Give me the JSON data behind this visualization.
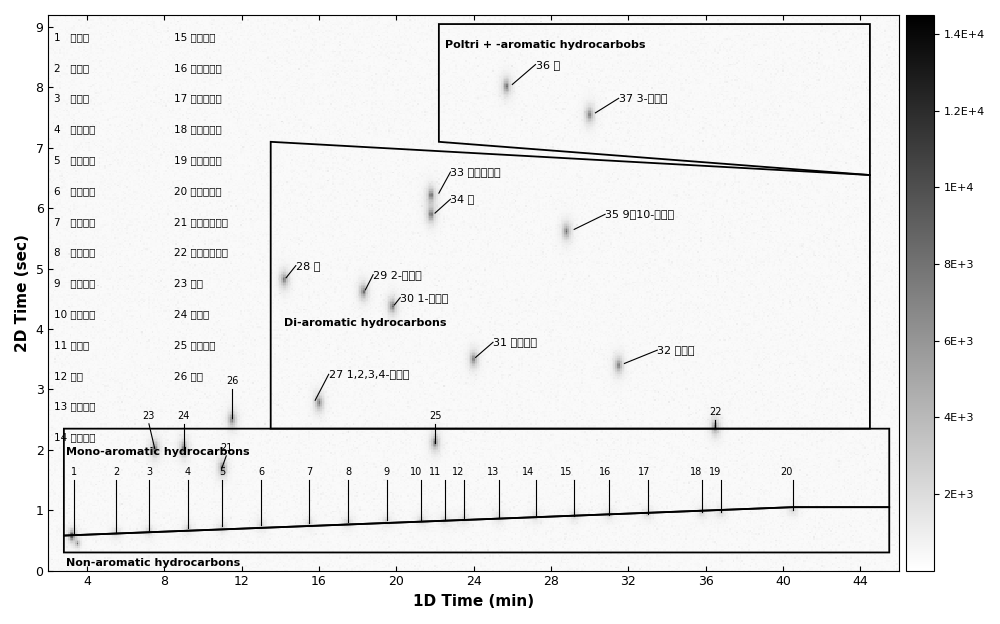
{
  "xlabel": "1D Time (min)",
  "ylabel": "2D Time (sec)",
  "xlim": [
    2,
    46
  ],
  "ylim": [
    0,
    9.2
  ],
  "xticks": [
    4,
    8,
    12,
    16,
    20,
    24,
    28,
    32,
    36,
    40,
    44
  ],
  "yticks": [
    0,
    1,
    2,
    3,
    4,
    5,
    6,
    7,
    8,
    9
  ],
  "legend_col1": [
    "1   正辛烷",
    "2   正壬烷",
    "3   正十烷",
    "4   正十一烷",
    "5   正十二烷",
    "6   正十三烷",
    "7   正十四烷",
    "8   正十五烷",
    "9   正十六烷",
    "10 正十七烷",
    "11 姥鲧烷",
    "12 植烷",
    "13 正十八烷",
    "14 正十九烷"
  ],
  "legend_col2": [
    "15 正二十烷",
    "16 正二十一烷",
    "17 正二十二烷",
    "18 正二十三烷",
    "19 正二十四烷",
    "20 正二十五烷",
    "21 双环己烷顺反",
    "22 正十八烷基苯",
    "23 乙苯",
    "24 正丙苯",
    "25 正辛基苯",
    "26 茸满"
  ],
  "colorbar_ticks": [
    2000,
    4000,
    6000,
    8000,
    10000,
    12000,
    14000
  ],
  "colorbar_labels": [
    "2E+3",
    "4E+3",
    "6E+3",
    "8E+3",
    "1E+4",
    "1.2E+4",
    "1.4E+4"
  ],
  "non_ar_poly": [
    [
      2.8,
      0.3
    ],
    [
      2.8,
      0.58
    ],
    [
      40.5,
      1.05
    ],
    [
      45.5,
      1.05
    ],
    [
      45.5,
      0.3
    ]
  ],
  "mono_ar_poly": [
    [
      2.8,
      0.58
    ],
    [
      2.8,
      2.35
    ],
    [
      45.5,
      2.35
    ],
    [
      45.5,
      1.05
    ],
    [
      40.5,
      1.05
    ]
  ],
  "di_ar_poly": [
    [
      13.5,
      2.35
    ],
    [
      13.5,
      7.1
    ],
    [
      44.5,
      6.55
    ],
    [
      44.5,
      2.35
    ]
  ],
  "poltri_ar_poly": [
    [
      22.2,
      9.05
    ],
    [
      44.5,
      9.05
    ],
    [
      44.5,
      6.55
    ],
    [
      22.2,
      7.1
    ]
  ],
  "peak_dots_alkane": [
    [
      3.3,
      0.58
    ],
    [
      5.5,
      0.62
    ],
    [
      7.2,
      0.65
    ],
    [
      9.2,
      0.7
    ],
    [
      11.0,
      0.72
    ],
    [
      13.0,
      0.75
    ],
    [
      15.5,
      0.78
    ],
    [
      17.5,
      0.8
    ],
    [
      19.5,
      0.82
    ],
    [
      21.3,
      0.84
    ],
    [
      22.5,
      0.84
    ],
    [
      23.5,
      0.855
    ],
    [
      25.3,
      0.875
    ],
    [
      27.2,
      0.895
    ],
    [
      29.2,
      0.905
    ],
    [
      31.0,
      0.925
    ],
    [
      33.0,
      0.945
    ],
    [
      35.8,
      0.965
    ],
    [
      36.8,
      0.975
    ],
    [
      40.5,
      1.005
    ]
  ],
  "peak_dots_aromatic": [
    [
      7.5,
      2.02
    ],
    [
      9.0,
      2.02
    ],
    [
      11.0,
      1.7
    ],
    [
      22.0,
      2.12
    ],
    [
      11.5,
      2.5
    ],
    [
      16.0,
      2.78
    ],
    [
      14.2,
      4.82
    ],
    [
      18.3,
      4.62
    ],
    [
      19.8,
      4.38
    ],
    [
      36.5,
      2.38
    ],
    [
      24.0,
      3.5
    ],
    [
      31.5,
      3.4
    ],
    [
      21.8,
      6.22
    ],
    [
      21.8,
      5.9
    ],
    [
      28.8,
      5.62
    ],
    [
      25.7,
      8.02
    ],
    [
      30.0,
      7.55
    ]
  ]
}
